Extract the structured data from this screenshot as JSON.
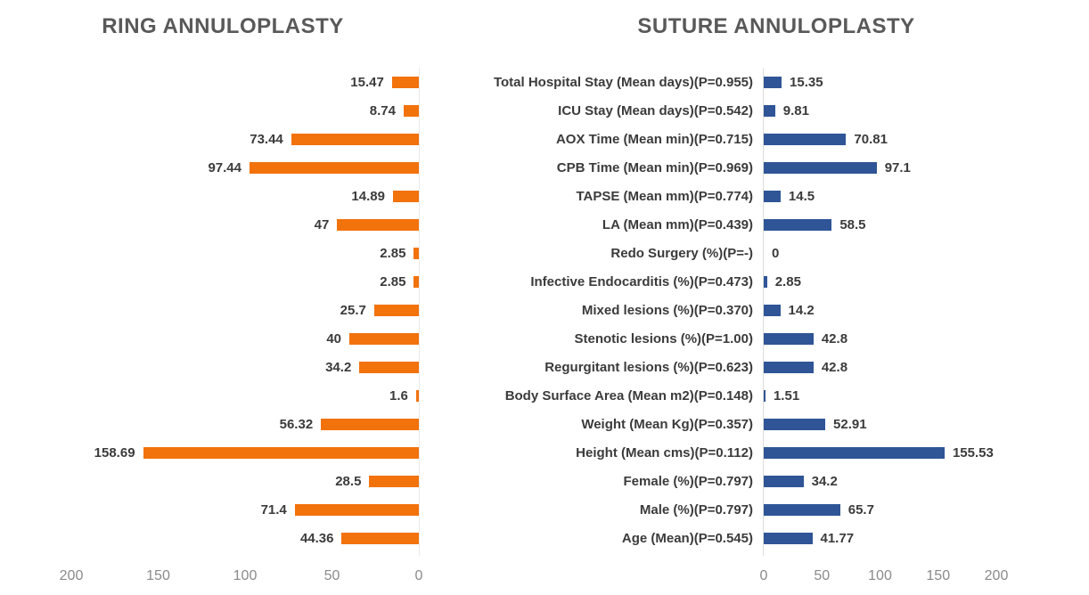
{
  "titles": {
    "left": "RING ANNULOPLASTY",
    "right": "SUTURE ANNULOPLASTY"
  },
  "colors": {
    "ring_bar": "#F2720C",
    "suture_bar": "#2F5597",
    "title_text": "#595959",
    "label_text": "#3B3B3B",
    "axis_text": "#8A8A8A",
    "axis_line": "#DCDCDC"
  },
  "chart_data": {
    "type": "bar",
    "subtype": "tornado-horizontal",
    "title_left_panel": "RING ANNULOPLASTY",
    "title_right_panel": "SUTURE ANNULOPLASTY",
    "categories": [
      "Total Hospital Stay (Mean days)(P=0.955)",
      "ICU Stay (Mean days)(P=0.542)",
      "AOX Time (Mean min)(P=0.715)",
      "CPB Time (Mean min)(P=0.969)",
      "TAPSE (Mean mm)(P=0.774)",
      "LA (Mean mm)(P=0.439)",
      "Redo Surgery (%)(P=-)",
      "Infective Endocarditis (%)(P=0.473)",
      "Mixed lesions (%)(P=0.370)",
      "Stenotic lesions (%)(P=1.00)",
      "Regurgitant lesions (%)(P=0.623)",
      "Body Surface Area (Mean m2)(P=0.148)",
      "Weight (Mean Kg)(P=0.357)",
      "Height (Mean cms)(P=0.112)",
      "Female (%)(P=0.797)",
      "Male (%)(P=0.797)",
      "Age (Mean)(P=0.545)"
    ],
    "series": [
      {
        "name": "RING ANNULOPLASTY",
        "side": "left",
        "color": "#F2720C",
        "values": [
          15.47,
          8.74,
          73.44,
          97.44,
          14.89,
          47,
          2.85,
          2.85,
          25.7,
          40,
          34.2,
          1.6,
          56.32,
          158.69,
          28.5,
          71.4,
          44.36
        ]
      },
      {
        "name": "SUTURE ANNULOPLASTY",
        "side": "right",
        "color": "#2F5597",
        "values": [
          15.35,
          9.81,
          70.81,
          97.1,
          14.5,
          58.5,
          0,
          2.85,
          14.2,
          42.8,
          42.8,
          1.51,
          52.91,
          155.53,
          34.2,
          65.7,
          41.77
        ]
      }
    ],
    "axes": {
      "left_panel_ticks": [
        200,
        150,
        100,
        50,
        0
      ],
      "right_panel_ticks": [
        0,
        50,
        100,
        150,
        200
      ],
      "value_range": [
        0,
        200
      ],
      "left_axis_reversed": true
    },
    "value_labels": true,
    "grid": false,
    "legend_position": "none"
  }
}
